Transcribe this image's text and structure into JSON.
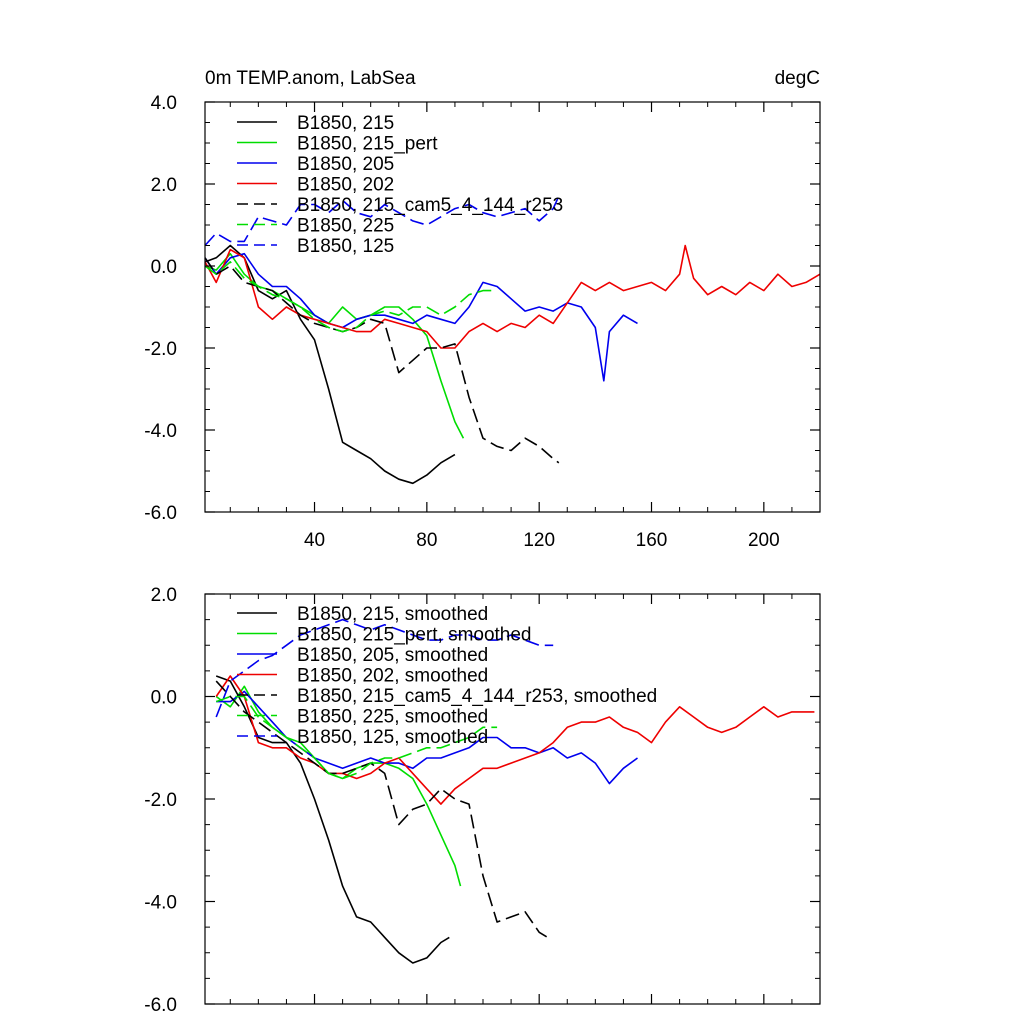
{
  "chart_data": [
    {
      "type": "line",
      "title": "0m TEMP.anom, LabSea",
      "units": "degC",
      "xlabel": "",
      "ylabel": "",
      "xlim": [
        1,
        220
      ],
      "ylim": [
        -6,
        4
      ],
      "xticks": [
        40,
        80,
        120,
        160,
        200
      ],
      "yticks": [
        4.0,
        2.0,
        0.0,
        -2.0,
        -4.0,
        -6.0
      ],
      "xtick_labels": [
        "40",
        "80",
        "120",
        "160",
        "200"
      ],
      "ytick_labels": [
        "4.0",
        "2.0",
        "0.0",
        "-2.0",
        "-4.0",
        "-6.0"
      ],
      "grid": false,
      "legend_position": "top-left",
      "series": [
        {
          "name": "B1850, 215",
          "color": "#000000",
          "dash": "solid",
          "x": [
            1,
            5,
            10,
            15,
            20,
            25,
            30,
            35,
            40,
            45,
            50,
            55,
            60,
            65,
            70,
            75,
            80,
            85,
            90
          ],
          "y": [
            0.1,
            0.2,
            0.5,
            0.2,
            -0.6,
            -0.8,
            -0.6,
            -1.3,
            -1.8,
            -3.0,
            -4.3,
            -4.5,
            -4.7,
            -5.0,
            -5.2,
            -5.3,
            -5.1,
            -4.8,
            -4.6
          ]
        },
        {
          "name": "B1850, 215_pert",
          "color": "#00dd00",
          "dash": "solid",
          "x": [
            1,
            5,
            10,
            15,
            20,
            25,
            30,
            35,
            40,
            45,
            50,
            55,
            60,
            65,
            70,
            75,
            80,
            85,
            90,
            93
          ],
          "y": [
            0.0,
            -0.1,
            0.3,
            -0.2,
            -0.5,
            -0.6,
            -0.8,
            -1.0,
            -1.2,
            -1.4,
            -1.0,
            -1.3,
            -1.2,
            -1.0,
            -1.0,
            -1.3,
            -1.7,
            -2.8,
            -3.8,
            -4.2
          ]
        },
        {
          "name": "B1850, 205",
          "color": "#0000ee",
          "dash": "solid",
          "x": [
            1,
            5,
            10,
            15,
            20,
            25,
            30,
            35,
            40,
            45,
            50,
            55,
            60,
            65,
            70,
            75,
            80,
            85,
            90,
            95,
            100,
            105,
            110,
            115,
            120,
            125,
            130,
            135,
            140,
            143,
            145,
            150,
            155
          ],
          "y": [
            0.2,
            -0.2,
            0.2,
            0.3,
            -0.2,
            -0.5,
            -0.5,
            -0.8,
            -1.2,
            -1.4,
            -1.5,
            -1.3,
            -1.2,
            -1.2,
            -1.3,
            -1.4,
            -1.2,
            -1.3,
            -1.4,
            -1.0,
            -0.4,
            -0.5,
            -0.8,
            -1.1,
            -1.0,
            -1.1,
            -0.9,
            -1.0,
            -1.5,
            -2.8,
            -1.6,
            -1.2,
            -1.4
          ]
        },
        {
          "name": "B1850, 202",
          "color": "#ee0000",
          "dash": "solid",
          "x": [
            1,
            5,
            10,
            15,
            20,
            25,
            30,
            35,
            40,
            45,
            50,
            55,
            60,
            65,
            70,
            75,
            80,
            85,
            90,
            95,
            100,
            105,
            110,
            115,
            120,
            125,
            130,
            135,
            140,
            145,
            150,
            155,
            160,
            165,
            170,
            172,
            175,
            180,
            185,
            190,
            195,
            200,
            205,
            210,
            215,
            220
          ],
          "y": [
            0.1,
            -0.4,
            0.4,
            0.2,
            -1.0,
            -1.3,
            -1.0,
            -1.2,
            -1.3,
            -1.4,
            -1.5,
            -1.6,
            -1.6,
            -1.3,
            -1.4,
            -1.5,
            -1.6,
            -2.0,
            -2.0,
            -1.6,
            -1.4,
            -1.6,
            -1.4,
            -1.5,
            -1.2,
            -1.4,
            -0.9,
            -0.4,
            -0.6,
            -0.4,
            -0.6,
            -0.5,
            -0.4,
            -0.6,
            -0.2,
            0.5,
            -0.3,
            -0.7,
            -0.5,
            -0.7,
            -0.4,
            -0.6,
            -0.2,
            -0.5,
            -0.4,
            -0.2
          ]
        },
        {
          "name": "B1850, 215_cam5_4_144_r253",
          "color": "#000000",
          "dash": "dashed",
          "x": [
            1,
            5,
            10,
            15,
            20,
            25,
            30,
            35,
            40,
            45,
            50,
            55,
            60,
            65,
            70,
            75,
            80,
            85,
            90,
            95,
            100,
            105,
            110,
            115,
            120,
            125,
            127
          ],
          "y": [
            0.2,
            -0.2,
            0.0,
            -0.4,
            -0.5,
            -0.6,
            -0.9,
            -1.2,
            -1.4,
            -1.5,
            -1.6,
            -1.5,
            -1.3,
            -1.4,
            -2.6,
            -2.3,
            -2.0,
            -2.0,
            -1.9,
            -3.2,
            -4.2,
            -4.4,
            -4.5,
            -4.2,
            -4.4,
            -4.7,
            -4.8
          ]
        },
        {
          "name": "B1850, 225",
          "color": "#00dd00",
          "dash": "dashed",
          "x": [
            1,
            5,
            10,
            15,
            20,
            25,
            30,
            35,
            40,
            45,
            50,
            55,
            60,
            65,
            70,
            75,
            80,
            85,
            90,
            95,
            100,
            105
          ],
          "y": [
            0.0,
            -0.2,
            0.1,
            -0.3,
            -0.5,
            -0.7,
            -0.8,
            -1.0,
            -1.3,
            -1.5,
            -1.6,
            -1.5,
            -1.2,
            -1.1,
            -1.2,
            -1.0,
            -1.0,
            -1.2,
            -1.0,
            -0.7,
            -0.6,
            -0.6
          ]
        },
        {
          "name": "B1850, 125",
          "color": "#0000ee",
          "dash": "dashed",
          "x": [
            1,
            5,
            10,
            15,
            20,
            25,
            30,
            35,
            40,
            45,
            50,
            55,
            60,
            65,
            70,
            75,
            80,
            85,
            90,
            95,
            100,
            105,
            110,
            115,
            120,
            125,
            127
          ],
          "y": [
            0.5,
            0.8,
            0.6,
            0.6,
            1.2,
            1.1,
            1.0,
            1.5,
            1.5,
            1.3,
            1.6,
            1.3,
            1.2,
            1.5,
            1.3,
            1.1,
            1.0,
            1.2,
            1.4,
            1.5,
            1.3,
            1.2,
            1.3,
            1.4,
            1.1,
            1.4,
            1.7
          ]
        }
      ]
    },
    {
      "type": "line",
      "title": "",
      "xlabel": "",
      "ylabel": "",
      "xlim": [
        1,
        220
      ],
      "ylim": [
        -6,
        2
      ],
      "xticks": [
        40,
        80,
        120,
        160,
        200
      ],
      "yticks": [
        2.0,
        0.0,
        -2.0,
        -4.0,
        -6.0
      ],
      "ytick_labels": [
        "2.0",
        "0.0",
        "-2.0",
        "-4.0",
        "-6.0"
      ],
      "grid": false,
      "legend_position": "top-left",
      "series": [
        {
          "name": "B1850, 215, smoothed",
          "color": "#000000",
          "dash": "solid",
          "x": [
            5,
            10,
            15,
            20,
            25,
            30,
            35,
            40,
            45,
            50,
            55,
            60,
            65,
            70,
            75,
            80,
            85,
            88
          ],
          "y": [
            0.4,
            0.3,
            -0.2,
            -0.8,
            -0.9,
            -0.9,
            -1.3,
            -2.0,
            -2.8,
            -3.7,
            -4.3,
            -4.4,
            -4.7,
            -5.0,
            -5.2,
            -5.1,
            -4.8,
            -4.7
          ]
        },
        {
          "name": "B1850, 215_pert, smoothed",
          "color": "#00dd00",
          "dash": "solid",
          "x": [
            5,
            10,
            15,
            20,
            25,
            30,
            35,
            40,
            45,
            50,
            55,
            60,
            65,
            70,
            75,
            80,
            85,
            90,
            92
          ],
          "y": [
            0.0,
            -0.2,
            0.2,
            -0.3,
            -0.6,
            -0.8,
            -0.9,
            -1.2,
            -1.5,
            -1.6,
            -1.4,
            -1.3,
            -1.3,
            -1.4,
            -1.6,
            -2.1,
            -2.7,
            -3.3,
            -3.7
          ]
        },
        {
          "name": "B1850, 205, smoothed",
          "color": "#0000ee",
          "dash": "solid",
          "x": [
            5,
            10,
            15,
            20,
            25,
            30,
            35,
            40,
            45,
            50,
            55,
            60,
            65,
            70,
            75,
            80,
            85,
            90,
            95,
            100,
            105,
            110,
            115,
            120,
            125,
            130,
            135,
            140,
            145,
            150,
            155
          ],
          "y": [
            -0.1,
            -0.1,
            0.1,
            -0.2,
            -0.5,
            -0.8,
            -1.0,
            -1.2,
            -1.3,
            -1.4,
            -1.3,
            -1.2,
            -1.3,
            -1.3,
            -1.4,
            -1.2,
            -1.2,
            -1.1,
            -1.0,
            -0.8,
            -0.8,
            -1.0,
            -1.0,
            -1.1,
            -1.0,
            -1.2,
            -1.1,
            -1.3,
            -1.7,
            -1.4,
            -1.2
          ]
        },
        {
          "name": "B1850, 202, smoothed",
          "color": "#ee0000",
          "dash": "solid",
          "x": [
            5,
            10,
            15,
            20,
            25,
            30,
            35,
            40,
            45,
            50,
            55,
            60,
            65,
            70,
            75,
            80,
            85,
            90,
            95,
            100,
            105,
            110,
            115,
            120,
            125,
            130,
            135,
            140,
            145,
            150,
            155,
            160,
            165,
            170,
            175,
            180,
            185,
            190,
            195,
            200,
            205,
            210,
            215,
            218
          ],
          "y": [
            0.0,
            0.4,
            0.0,
            -0.9,
            -1.0,
            -1.0,
            -1.2,
            -1.3,
            -1.5,
            -1.5,
            -1.6,
            -1.5,
            -1.3,
            -1.2,
            -1.5,
            -1.8,
            -2.1,
            -1.8,
            -1.6,
            -1.4,
            -1.4,
            -1.3,
            -1.2,
            -1.1,
            -0.9,
            -0.6,
            -0.5,
            -0.5,
            -0.4,
            -0.6,
            -0.7,
            -0.9,
            -0.5,
            -0.2,
            -0.4,
            -0.6,
            -0.7,
            -0.6,
            -0.4,
            -0.2,
            -0.4,
            -0.3,
            -0.3,
            -0.3
          ]
        },
        {
          "name": "B1850, 215_cam5_4_144_r253, smoothed",
          "color": "#000000",
          "dash": "dashed",
          "x": [
            5,
            10,
            15,
            20,
            25,
            30,
            35,
            40,
            45,
            50,
            55,
            60,
            65,
            70,
            75,
            80,
            85,
            90,
            95,
            100,
            105,
            110,
            115,
            120,
            123
          ],
          "y": [
            0.3,
            0.0,
            -0.3,
            -0.5,
            -0.7,
            -0.9,
            -1.1,
            -1.3,
            -1.5,
            -1.5,
            -1.4,
            -1.3,
            -1.5,
            -2.5,
            -2.2,
            -2.1,
            -1.8,
            -2.0,
            -2.1,
            -3.5,
            -4.4,
            -4.3,
            -4.2,
            -4.6,
            -4.7
          ]
        },
        {
          "name": "B1850, 225, smoothed",
          "color": "#00dd00",
          "dash": "dashed",
          "x": [
            5,
            10,
            15,
            20,
            25,
            30,
            35,
            40,
            45,
            50,
            55,
            60,
            65,
            70,
            75,
            80,
            85,
            90,
            95,
            100,
            105
          ],
          "y": [
            -0.1,
            0.0,
            0.0,
            -0.4,
            -0.6,
            -0.8,
            -1.0,
            -1.2,
            -1.5,
            -1.6,
            -1.5,
            -1.3,
            -1.2,
            -1.2,
            -1.1,
            -1.0,
            -1.0,
            -0.9,
            -0.8,
            -0.6,
            -0.6
          ]
        },
        {
          "name": "B1850, 125, smoothed",
          "color": "#0000ee",
          "dash": "dashed",
          "x": [
            5,
            10,
            15,
            20,
            25,
            30,
            35,
            40,
            45,
            50,
            55,
            60,
            65,
            70,
            75,
            80,
            85,
            90,
            95,
            100,
            105,
            110,
            115,
            120,
            125
          ],
          "y": [
            -0.4,
            0.3,
            0.5,
            0.7,
            0.8,
            1.0,
            1.2,
            1.3,
            1.4,
            1.5,
            1.4,
            1.3,
            1.4,
            1.3,
            1.2,
            1.1,
            1.1,
            1.2,
            1.2,
            1.1,
            1.1,
            1.2,
            1.1,
            1.0,
            1.0
          ]
        }
      ]
    }
  ]
}
